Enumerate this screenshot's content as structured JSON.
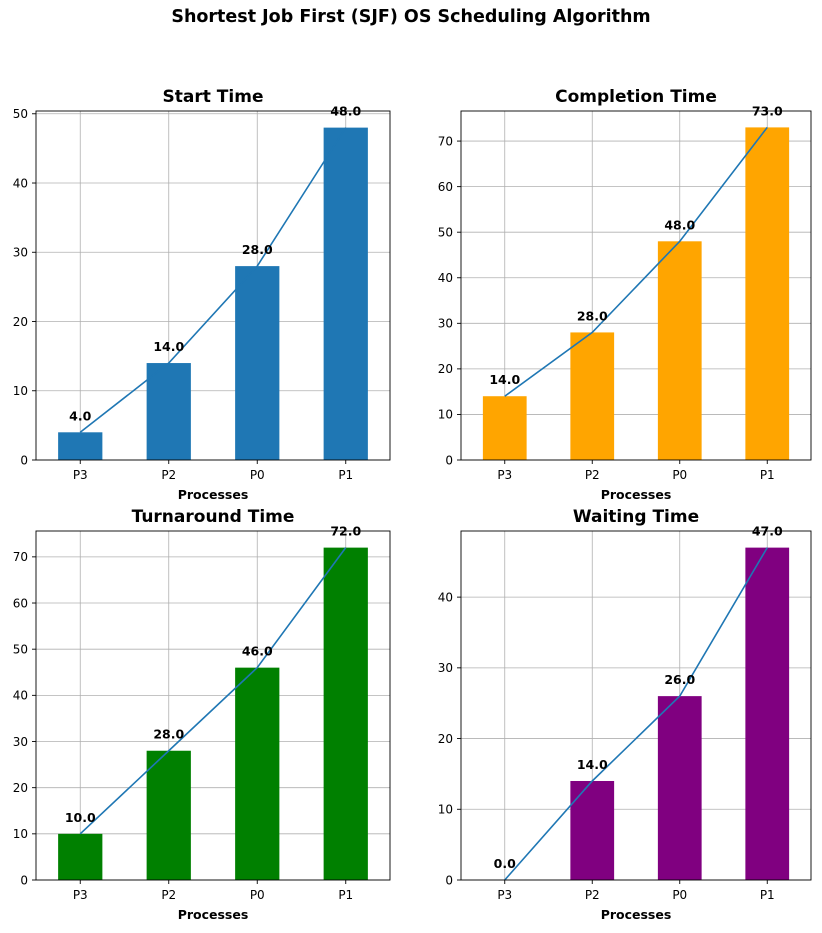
{
  "figure_title": "Shortest Job First (SJF) OS Scheduling Algorithm",
  "chart_data": [
    {
      "type": "bar",
      "title": "Start Time",
      "xlabel": "Processes",
      "ylabel": "",
      "categories": [
        "P3",
        "P2",
        "P0",
        "P1"
      ],
      "values": [
        4.0,
        14.0,
        28.0,
        48.0
      ],
      "data_labels": [
        "4.0",
        "14.0",
        "28.0",
        "48.0"
      ],
      "ylim": [
        0,
        50.4
      ],
      "yticks": [
        0,
        10,
        20,
        30,
        40,
        50
      ],
      "bar_color": "#1f77b4",
      "line_color": "#1f77b4",
      "line_overlay": true,
      "grid": true
    },
    {
      "type": "bar",
      "title": "Completion Time",
      "xlabel": "Processes",
      "ylabel": "",
      "categories": [
        "P3",
        "P2",
        "P0",
        "P1"
      ],
      "values": [
        14.0,
        28.0,
        48.0,
        73.0
      ],
      "data_labels": [
        "14.0",
        "28.0",
        "48.0",
        "73.0"
      ],
      "ylim": [
        0,
        76.6
      ],
      "yticks": [
        0,
        10,
        20,
        30,
        40,
        50,
        60,
        70
      ],
      "bar_color": "#ffa500",
      "line_color": "#1f77b4",
      "line_overlay": true,
      "grid": true
    },
    {
      "type": "bar",
      "title": "Turnaround Time",
      "xlabel": "Processes",
      "ylabel": "",
      "categories": [
        "P3",
        "P2",
        "P0",
        "P1"
      ],
      "values": [
        10.0,
        28.0,
        46.0,
        72.0
      ],
      "data_labels": [
        "10.0",
        "28.0",
        "46.0",
        "72.0"
      ],
      "ylim": [
        0,
        75.6
      ],
      "yticks": [
        0,
        10,
        20,
        30,
        40,
        50,
        60,
        70
      ],
      "bar_color": "#008000",
      "line_color": "#1f77b4",
      "line_overlay": true,
      "grid": true
    },
    {
      "type": "bar",
      "title": "Waiting Time",
      "xlabel": "Processes",
      "ylabel": "",
      "categories": [
        "P3",
        "P2",
        "P0",
        "P1"
      ],
      "values": [
        0.0,
        14.0,
        26.0,
        47.0
      ],
      "data_labels": [
        "0.0",
        "14.0",
        "26.0",
        "47.0"
      ],
      "ylim": [
        0,
        49.35
      ],
      "yticks": [
        0,
        10,
        20,
        30,
        40
      ],
      "bar_color": "#800080",
      "line_color": "#1f77b4",
      "line_overlay": true,
      "grid": true
    }
  ]
}
